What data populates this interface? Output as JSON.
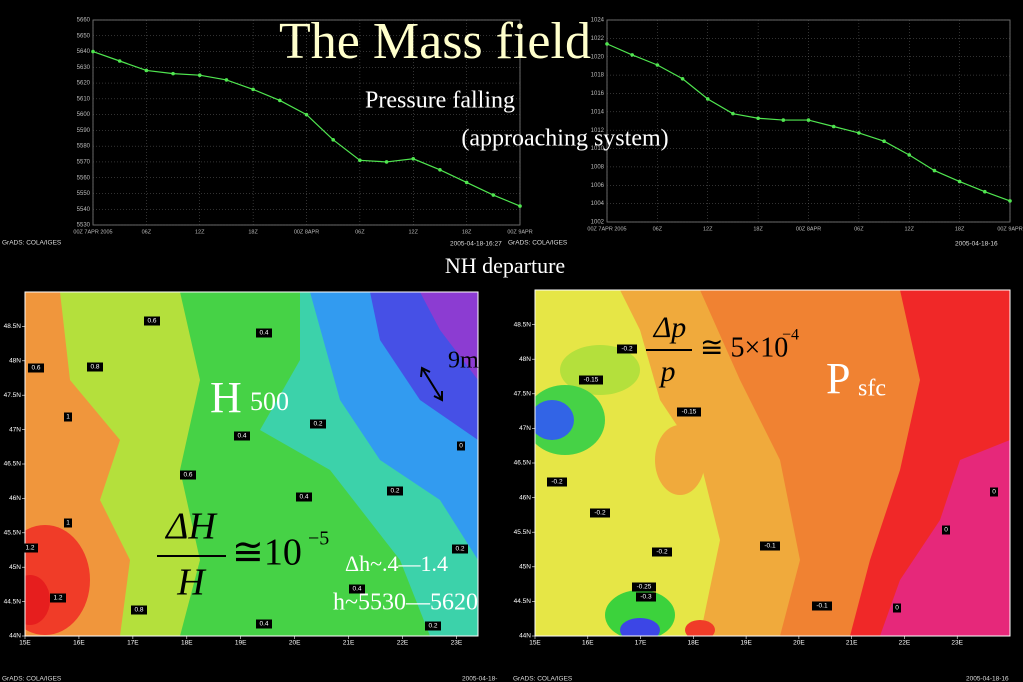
{
  "slide": {
    "title": "The Mass field",
    "subtitle": "Pressure falling",
    "subtitle_2": "(approaching system)",
    "caption": "NH departure",
    "footers": [
      "GrADS: COLA/IGES",
      "2005-04-18-16:27",
      "GrADS: COLA/IGES",
      "2005-04-18-16",
      "GrADS: COLA/IGES",
      "2005-04-18-",
      "GrADS: COLA/IGES",
      "2005-04-18-16"
    ]
  },
  "chart_data": [
    {
      "type": "line",
      "x": [
        0,
        3,
        6,
        9,
        12,
        15,
        18,
        21,
        24,
        27,
        30,
        33,
        36,
        39,
        42,
        45,
        48
      ],
      "series": [
        {
          "color": "#50e650",
          "values": [
            5640,
            5634,
            5628,
            5626,
            5625,
            5622,
            5616,
            5609,
            5600,
            5584,
            5571,
            5570,
            5572,
            5565,
            5557,
            5549,
            5542
          ]
        }
      ],
      "xlim": [
        0,
        48
      ],
      "xticks": [
        {
          "value": 0,
          "label": "00Z 7APR 2005"
        },
        {
          "value": 6,
          "label": "06Z"
        },
        {
          "value": 12,
          "label": "12Z"
        },
        {
          "value": 18,
          "label": "18Z"
        },
        {
          "value": 24,
          "label": "00Z 8APR"
        },
        {
          "value": 30,
          "label": "06Z"
        },
        {
          "value": 36,
          "label": "12Z"
        },
        {
          "value": 42,
          "label": "18Z"
        },
        {
          "value": 48,
          "label": "00Z 9APR"
        }
      ],
      "ylim": [
        5530,
        5660
      ],
      "yticks": [
        5530,
        5540,
        5550,
        5560,
        5570,
        5580,
        5590,
        5600,
        5610,
        5620,
        5630,
        5640,
        5650,
        5660
      ],
      "grid": true
    },
    {
      "type": "line",
      "x": [
        0,
        3,
        6,
        9,
        12,
        15,
        18,
        21,
        24,
        27,
        30,
        33,
        36,
        39,
        42,
        45,
        48
      ],
      "series": [
        {
          "color": "#50e650",
          "values": [
            1021.4,
            1020.2,
            1019.1,
            1017.6,
            1015.4,
            1013.8,
            1013.3,
            1013.1,
            1013.1,
            1012.4,
            1011.7,
            1010.8,
            1009.3,
            1007.6,
            1006.4,
            1005.3,
            1004.3
          ]
        }
      ],
      "xlim": [
        0,
        48
      ],
      "xticks": [
        {
          "value": 0,
          "label": "00Z 7APR 2005"
        },
        {
          "value": 6,
          "label": "06Z"
        },
        {
          "value": 12,
          "label": "12Z"
        },
        {
          "value": 18,
          "label": "18Z"
        },
        {
          "value": 24,
          "label": "00Z 8APR"
        },
        {
          "value": 30,
          "label": "06Z"
        },
        {
          "value": 36,
          "label": "12Z"
        },
        {
          "value": 42,
          "label": "18Z"
        },
        {
          "value": 48,
          "label": "00Z 9APR"
        }
      ],
      "ylim": [
        1002,
        1024
      ],
      "yticks": [
        1002,
        1004,
        1006,
        1008,
        1010,
        1012,
        1014,
        1016,
        1018,
        1020,
        1022,
        1024
      ],
      "grid": true
    },
    {
      "type": "contour-map",
      "xlim": [
        15,
        23.4
      ],
      "xticks": [
        {
          "value": 15,
          "label": "15E"
        },
        {
          "value": 16,
          "label": "16E"
        },
        {
          "value": 17,
          "label": "17E"
        },
        {
          "value": 18,
          "label": "18E"
        },
        {
          "value": 19,
          "label": "19E"
        },
        {
          "value": 20,
          "label": "20E"
        },
        {
          "value": 21,
          "label": "21E"
        },
        {
          "value": 22,
          "label": "22E"
        },
        {
          "value": 23,
          "label": "23E"
        }
      ],
      "ylim": [
        44,
        49
      ],
      "yticks": [
        {
          "value": 44,
          "label": "44N"
        },
        {
          "value": 44.5,
          "label": "44.5N"
        },
        {
          "value": 45,
          "label": "45N"
        },
        {
          "value": 45.5,
          "label": "45.5N"
        },
        {
          "value": 46,
          "label": "46N"
        },
        {
          "value": 46.5,
          "label": "46.5N"
        },
        {
          "value": 47,
          "label": "47N"
        },
        {
          "value": 47.5,
          "label": "47.5N"
        },
        {
          "value": 48,
          "label": "48N"
        },
        {
          "value": 48.5,
          "label": "48.5N"
        }
      ],
      "contour_labels": [
        "0.6",
        "0.4",
        "0.6",
        "0.8",
        "1",
        "0.4",
        "0.2",
        "0",
        "0.6",
        "0.4",
        "0.2",
        "1",
        "1.2",
        "0.2",
        "1.2",
        "0.8",
        "0.4",
        "0.4",
        "0.2"
      ],
      "annotations": [
        "H",
        "500",
        "ΔH",
        "H",
        "≅10",
        "−5",
        "Δh~.4—1.4",
        "h~5530—5620",
        "9m"
      ]
    },
    {
      "type": "contour-map",
      "xlim": [
        15,
        24
      ],
      "xticks": [
        {
          "value": 15,
          "label": "15E"
        },
        {
          "value": 16,
          "label": "16E"
        },
        {
          "value": 17,
          "label": "17E"
        },
        {
          "value": 18,
          "label": "18E"
        },
        {
          "value": 19,
          "label": "19E"
        },
        {
          "value": 20,
          "label": "20E"
        },
        {
          "value": 21,
          "label": "21E"
        },
        {
          "value": 22,
          "label": "22E"
        },
        {
          "value": 23,
          "label": "23E"
        }
      ],
      "ylim": [
        44,
        49
      ],
      "yticks": [
        {
          "value": 44,
          "label": "44N"
        },
        {
          "value": 44.5,
          "label": "44.5N"
        },
        {
          "value": 45,
          "label": "45N"
        },
        {
          "value": 45.5,
          "label": "45.5N"
        },
        {
          "value": 46,
          "label": "46N"
        },
        {
          "value": 46.5,
          "label": "46.5N"
        },
        {
          "value": 47,
          "label": "47N"
        },
        {
          "value": 47.5,
          "label": "47.5N"
        },
        {
          "value": 48,
          "label": "48N"
        },
        {
          "value": 48.5,
          "label": "48.5N"
        }
      ],
      "contour_labels": [
        "-0.2",
        "-0.15",
        "-0.15",
        "-0.2",
        "-0.2",
        "-0.2",
        "-0.1",
        "0",
        "0",
        "-0.25",
        "-0.3",
        "-0.1",
        "0"
      ],
      "annotations": [
        "Δp",
        "p",
        "≅ 5×10",
        "−4",
        "P",
        "sfc"
      ]
    }
  ]
}
